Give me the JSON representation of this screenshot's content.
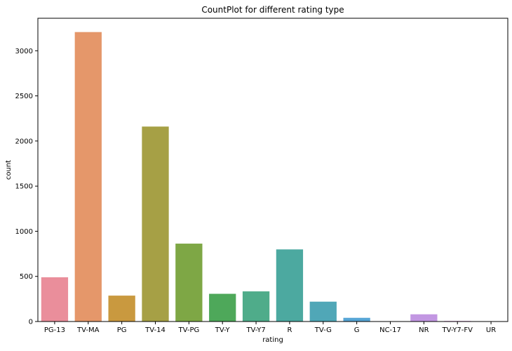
{
  "chart_data": {
    "type": "bar",
    "title": "CountPlot for different rating type",
    "xlabel": "rating",
    "ylabel": "count",
    "categories": [
      "PG-13",
      "TV-MA",
      "PG",
      "TV-14",
      "TV-PG",
      "TV-Y",
      "TV-Y7",
      "R",
      "TV-G",
      "G",
      "NC-17",
      "NR",
      "TV-Y7-FV",
      "UR"
    ],
    "values": [
      490,
      3207,
      287,
      2160,
      863,
      307,
      334,
      799,
      220,
      41,
      3,
      80,
      6,
      3
    ],
    "colors": [
      "#ea8e9b",
      "#e5976a",
      "#c9993f",
      "#a6a045",
      "#7ea745",
      "#4ea85a",
      "#4fac8a",
      "#4ca9a0",
      "#50a7b7",
      "#56a5d5",
      "#8e9fe5",
      "#c297e2",
      "#e18be0",
      "#e78ab9"
    ],
    "ylim": [
      0,
      3360
    ],
    "yticks": [
      0,
      500,
      1000,
      1500,
      2000,
      2500,
      3000
    ],
    "grid": false,
    "legend": "none"
  }
}
